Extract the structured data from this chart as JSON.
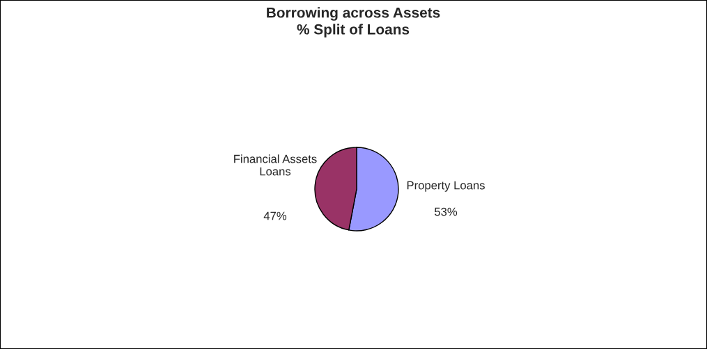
{
  "chart_data": {
    "type": "pie",
    "title": "Borrowing across Assets",
    "subtitle": "% Split of Loans",
    "categories": [
      "Property Loans",
      "Financial Assets\nLoans"
    ],
    "values": [
      53,
      47
    ],
    "colors": [
      "#9999ff",
      "#993366"
    ],
    "value_labels": [
      "53%",
      "47%"
    ],
    "legend": false
  }
}
